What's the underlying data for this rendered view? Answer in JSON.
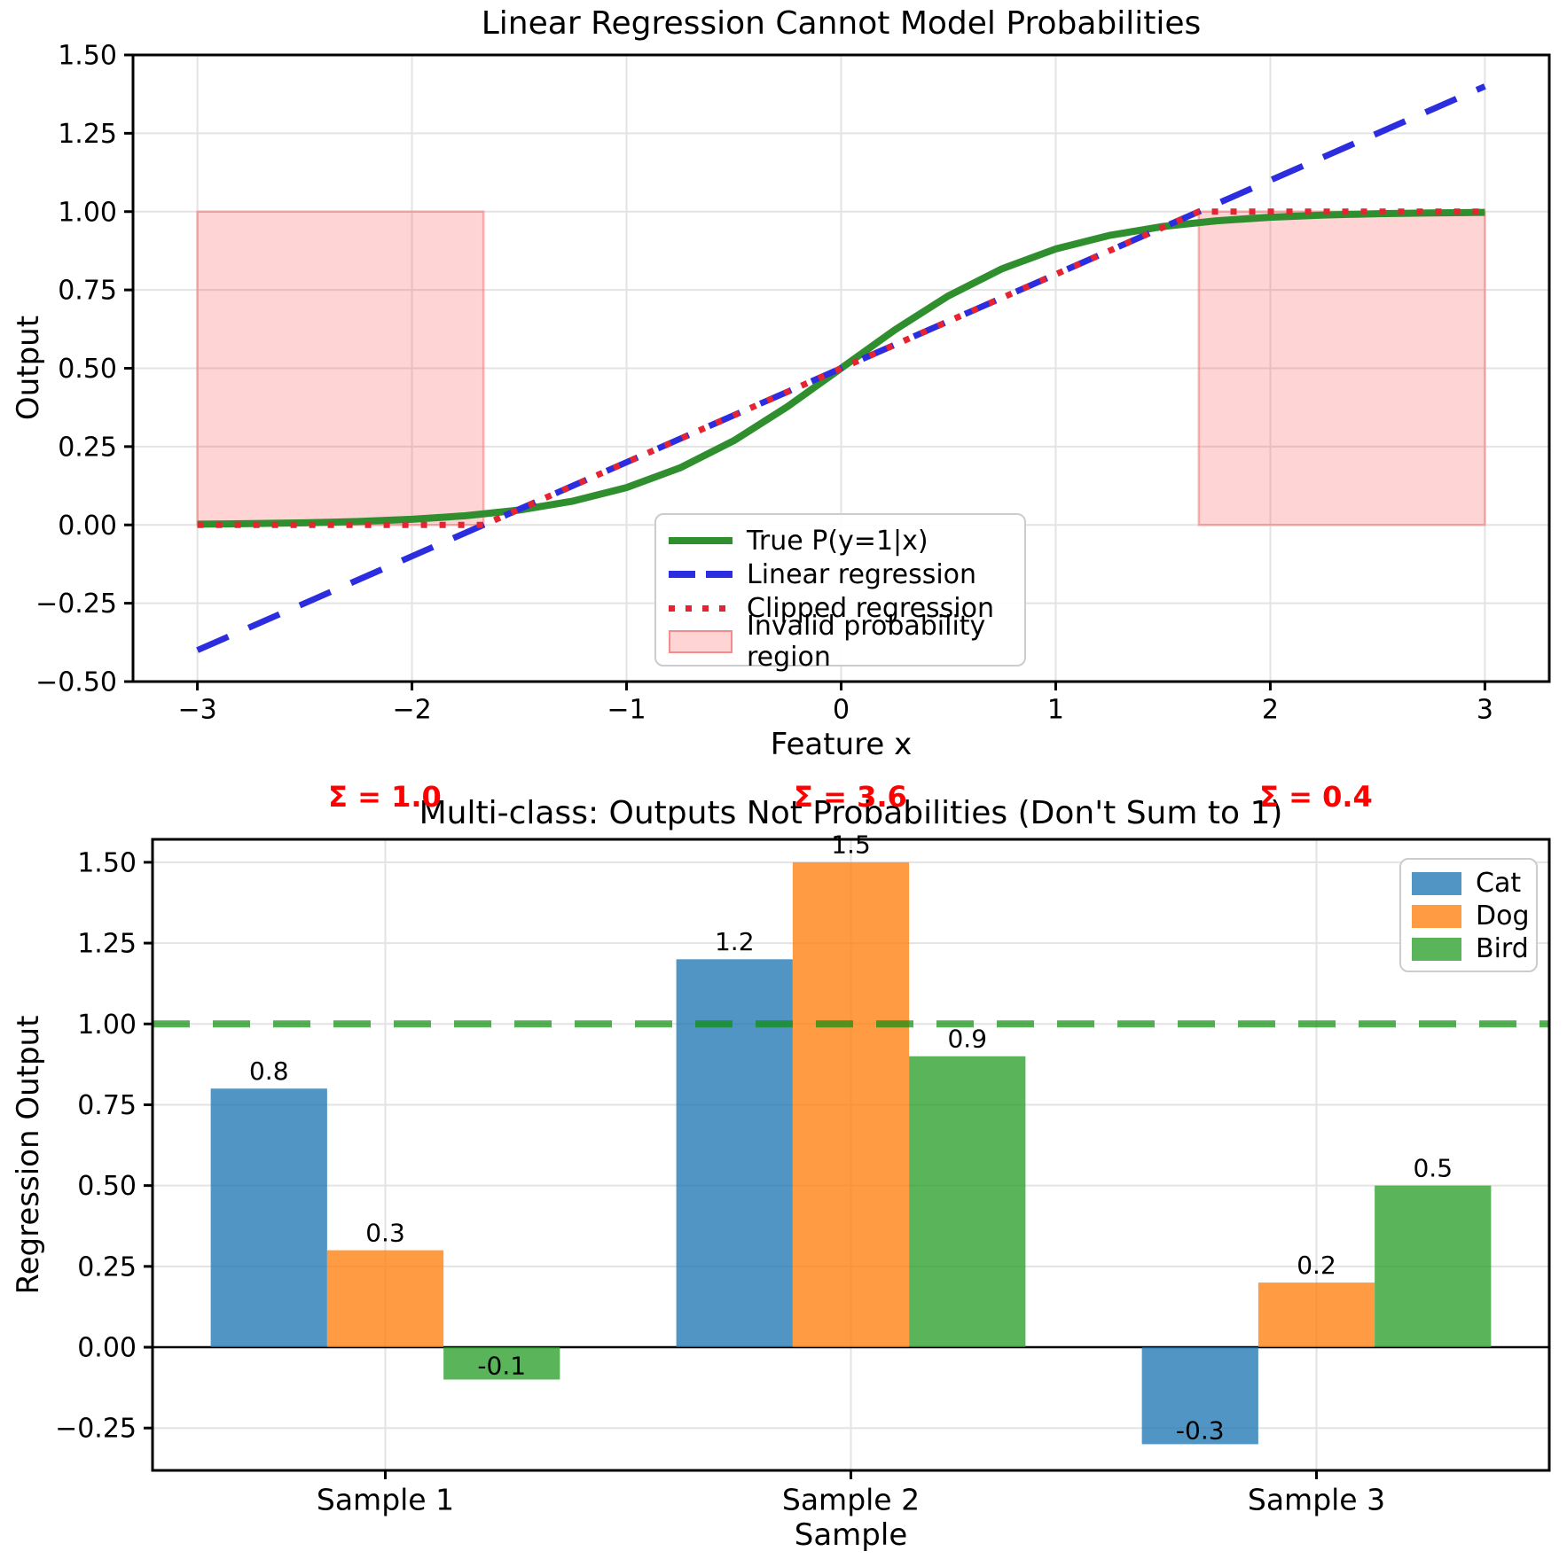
{
  "figure": {
    "background": "#ffffff"
  },
  "chart_data": [
    {
      "type": "line",
      "title": "Linear Regression Cannot Model Probabilities",
      "xlabel": "Feature x",
      "ylabel": "Output",
      "xlim": [
        -3.3,
        3.3
      ],
      "ylim": [
        -0.5,
        1.5
      ],
      "grid": true,
      "xticks": {
        "values": [
          -3,
          -2,
          -1,
          0,
          1,
          2,
          3
        ],
        "labels": [
          "−3",
          "−2",
          "−1",
          "0",
          "1",
          "2",
          "3"
        ]
      },
      "yticks": {
        "values": [
          1.5,
          1.25,
          1.0,
          0.75,
          0.5,
          0.25,
          0.0,
          -0.25,
          -0.5
        ],
        "labels": [
          "1.50",
          "1.25",
          "1.00",
          "0.75",
          "0.50",
          "0.25",
          "0.00",
          "−0.25",
          "−0.50"
        ]
      },
      "series": [
        {
          "name": "True P(y=1|x)",
          "style": "solid",
          "color": "#2f8f2f",
          "width": 8,
          "x": [
            -3,
            -2.75,
            -2.5,
            -2.25,
            -2,
            -1.75,
            -1.5,
            -1.25,
            -1,
            -0.75,
            -0.5,
            -0.25,
            0,
            0.25,
            0.5,
            0.75,
            1,
            1.25,
            1.5,
            1.75,
            2,
            2.25,
            2.5,
            2.75,
            3
          ],
          "y": [
            0.0025,
            0.0041,
            0.0067,
            0.011,
            0.018,
            0.0293,
            0.0474,
            0.0759,
            0.1192,
            0.1824,
            0.2689,
            0.3775,
            0.5,
            0.6225,
            0.7311,
            0.8176,
            0.8808,
            0.9241,
            0.9526,
            0.9707,
            0.982,
            0.989,
            0.9933,
            0.9959,
            0.9975
          ]
        },
        {
          "name": "Linear regression",
          "style": "dashed",
          "color": "#2d2de0",
          "width": 7,
          "x": [
            -3,
            3
          ],
          "y": [
            -0.4,
            1.4
          ]
        },
        {
          "name": "Clipped regression",
          "style": "dotted",
          "color": "#e62330",
          "width": 7,
          "x": [
            -3,
            -1.6667,
            1.6667,
            3
          ],
          "y": [
            0,
            0,
            1,
            1
          ]
        }
      ],
      "regions": [
        {
          "x0": -3,
          "x1": -1.6667,
          "y0": 0,
          "y1": 1
        },
        {
          "x0": 1.6667,
          "x1": 3,
          "y0": 0,
          "y1": 1
        }
      ],
      "region_fill": "rgba(255,60,60,0.22)",
      "region_edge": "rgba(245,120,120,0.55)",
      "legend": [
        {
          "label": "True P(y=1|x)",
          "swatch": "solid",
          "color": "#2f8f2f"
        },
        {
          "label": "Linear regression",
          "swatch": "dashed",
          "color": "#2d2de0"
        },
        {
          "label": "Clipped regression",
          "swatch": "dotted",
          "color": "#e62330"
        },
        {
          "label": "Invalid probability region",
          "swatch": "patch",
          "color": "rgba(255,60,60,0.22)",
          "edge": "rgba(245,120,120,0.8)"
        }
      ]
    },
    {
      "type": "bar",
      "title": "Multi-class: Outputs Not Probabilities (Don't Sum to 1)",
      "xlabel": "Sample",
      "ylabel": "Regression Output",
      "categories": [
        "Sample 1",
        "Sample 2",
        "Sample 3"
      ],
      "ylim": [
        -0.381,
        1.571
      ],
      "grid": true,
      "yticks": {
        "values": [
          1.5,
          1.25,
          1.0,
          0.75,
          0.5,
          0.25,
          0.0,
          -0.25
        ],
        "labels": [
          "1.50",
          "1.25",
          "1.00",
          "0.75",
          "0.50",
          "0.25",
          "0.00",
          "−0.25"
        ]
      },
      "series": [
        {
          "name": "Cat",
          "color": "#1f77b4",
          "alpha": 0.78,
          "values": [
            0.8,
            1.2,
            -0.3
          ],
          "labels": [
            "0.8",
            "1.2",
            "-0.3"
          ]
        },
        {
          "name": "Dog",
          "color": "#ff7f0e",
          "alpha": 0.78,
          "values": [
            0.3,
            1.5,
            0.2
          ],
          "labels": [
            "0.3",
            "1.5",
            "0.2"
          ]
        },
        {
          "name": "Bird",
          "color": "#2ca02c",
          "alpha": 0.78,
          "values": [
            -0.1,
            0.9,
            0.5
          ],
          "labels": [
            "-0.1",
            "0.9",
            "0.5"
          ]
        }
      ],
      "sums": [
        "Σ = 1.0",
        "Σ = 3.6",
        "Σ = 0.4"
      ],
      "sum_color": "#ff0000",
      "hline": {
        "y": 1.0,
        "color": "#0d8f0d",
        "alpha": 0.7,
        "style": "dashed"
      },
      "legend_position": "upper right",
      "legend": [
        {
          "label": "Cat",
          "color": "#1f77b4",
          "alpha": 0.78
        },
        {
          "label": "Dog",
          "color": "#ff7f0e",
          "alpha": 0.78
        },
        {
          "label": "Bird",
          "color": "#2ca02c",
          "alpha": 0.78
        }
      ]
    }
  ]
}
